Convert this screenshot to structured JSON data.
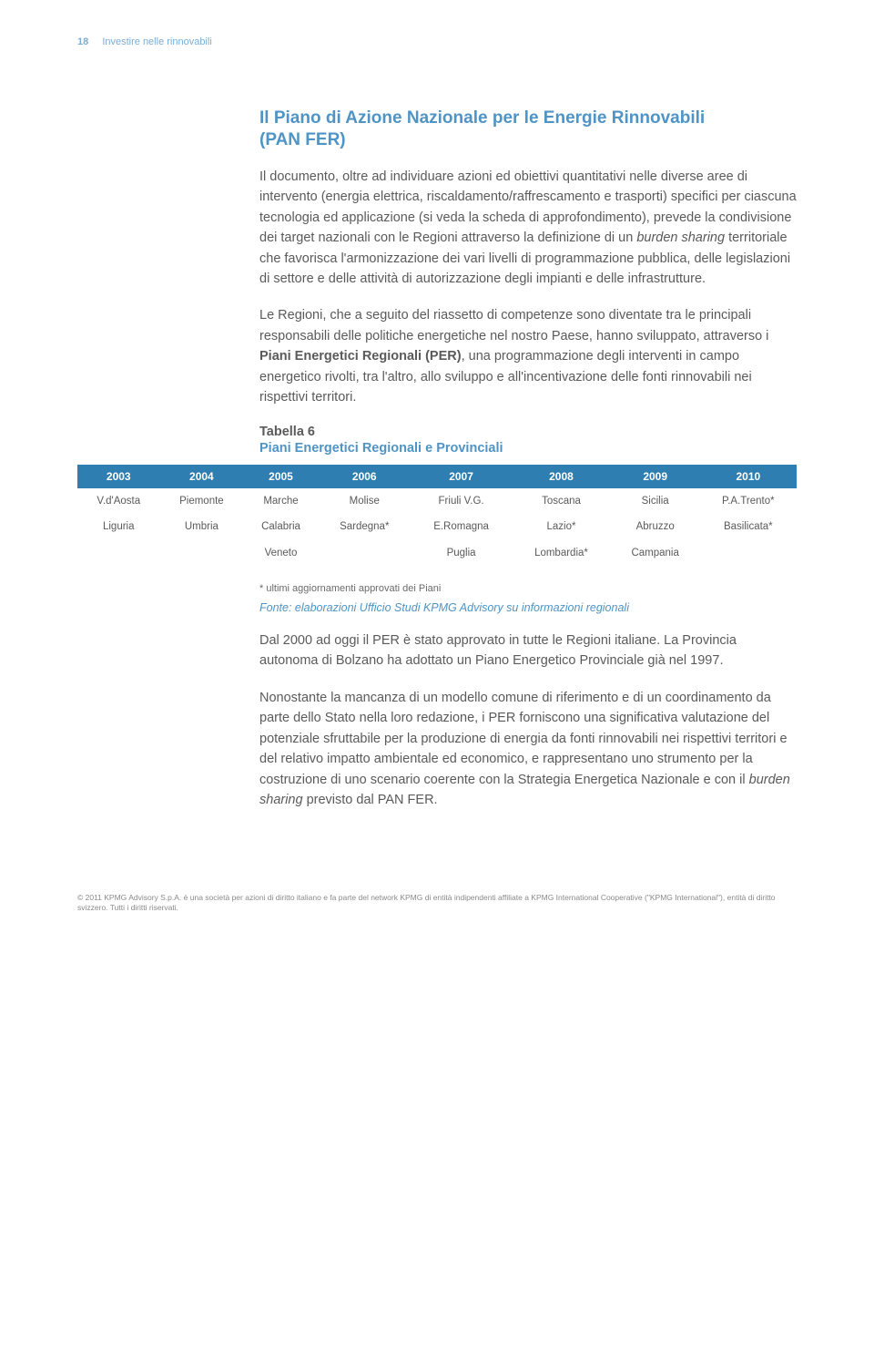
{
  "header": {
    "page_number": "18",
    "running_title": "Investire nelle rinnovabili"
  },
  "section": {
    "title_line1": "Il Piano di Azione Nazionale per le Energie Rinnovabili",
    "title_line2": "(PAN FER)"
  },
  "paragraphs": {
    "p1_part1": "Il documento, oltre ad individuare azioni ed obiettivi quantitativi nelle diverse aree di intervento (energia elettrica, riscaldamento/raffrescamento e trasporti) specifici per ciascuna tecnologia ed applicazione (si veda la scheda di approfondimento), prevede la condivisione dei target nazionali con le Regioni attraverso la definizione di un ",
    "p1_em": "burden sharing",
    "p1_part2": " territoriale che favorisca l'armonizzazione dei vari livelli di programmazione pubblica, delle legislazioni di settore e delle attività di autorizzazione degli impianti e delle infrastrutture.",
    "p2_part1": "Le Regioni, che a seguito del riassetto di competenze sono diventate tra le principali responsabili delle politiche energetiche nel nostro Paese, hanno sviluppato, attraverso i ",
    "p2_strong": "Piani Energetici Regionali (PER)",
    "p2_part2": ", una programmazione degli interventi in campo energetico rivolti, tra l'altro, allo sviluppo e all'incentivazione delle fonti rinnovabili nei rispettivi territori.",
    "p3": "Dal 2000 ad oggi il PER è stato approvato in tutte le Regioni italiane. La Provincia autonoma di Bolzano ha adottato un Piano Energetico Provinciale già nel 1997.",
    "p4_part1": "Nonostante la mancanza di un modello comune di riferimento e di un coordinamento da parte dello Stato nella loro redazione, i PER forniscono una significativa valutazione del potenziale sfruttabile per la produzione di energia da fonti rinnovabili nei rispettivi territori e del relativo impatto ambientale ed economico, e rappresentano uno strumento per la costruzione di uno scenario coerente con la Strategia Energetica Nazionale e con il ",
    "p4_em": "burden sharing",
    "p4_part2": " previsto dal PAN FER."
  },
  "table": {
    "label": "Tabella 6",
    "caption": "Piani Energetici Regionali e Provinciali",
    "header_bg": "#2f7eb2",
    "header_color": "#ffffff",
    "columns": [
      "2003",
      "2004",
      "2005",
      "2006",
      "2007",
      "2008",
      "2009",
      "2010"
    ],
    "rows": [
      [
        "V.d'Aosta",
        "Piemonte",
        "Marche",
        "Molise",
        "Friuli V.G.",
        "Toscana",
        "Sicilia",
        "P.A.Trento*"
      ],
      [
        "Liguria",
        "Umbria",
        "Calabria",
        "Sardegna*",
        "E.Romagna",
        "Lazio*",
        "Abruzzo",
        "Basilicata*"
      ],
      [
        "",
        "",
        "Veneto",
        "",
        "Puglia",
        "Lombardia*",
        "Campania",
        ""
      ]
    ],
    "footnote": "* ultimi aggiornamenti approvati dei Piani",
    "source": "Fonte: elaborazioni Ufficio Studi KPMG Advisory su informazioni regionali"
  },
  "footer": {
    "text": "© 2011 KPMG Advisory S.p.A. è una società per azioni di diritto italiano e fa parte del network KPMG di entità indipendenti affiliate a KPMG International Cooperative (\"KPMG International\"), entità di diritto svizzero. Tutti i diritti riservati."
  }
}
